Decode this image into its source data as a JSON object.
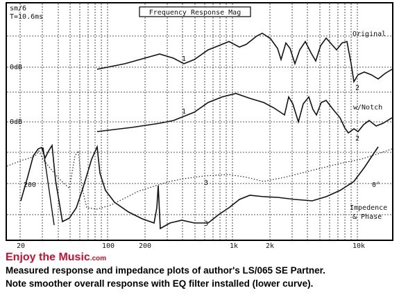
{
  "plot": {
    "info_lines": [
      "sm/6",
      "T=10.6ms"
    ],
    "title": "Frequency Response Mag",
    "curve_labels": [
      "Original",
      "w/Notch",
      "Impedence",
      "& Phase"
    ],
    "level_labels": [
      "0dB",
      "0dB",
      "200",
      "0°"
    ],
    "markers": [
      "1",
      "2",
      "1",
      "2",
      "3",
      "3"
    ],
    "x_labels": [
      "20",
      "100",
      "200",
      "1k",
      "2k",
      "10k"
    ]
  },
  "footer": {
    "brand": "Enjoy the Music",
    "brand_suffix": ".com",
    "caption": [
      "Measured response and impedance plots of author's LS/065 SE Partner.",
      "Note smoother overall response with EQ filter installed (lower curve)."
    ]
  }
}
